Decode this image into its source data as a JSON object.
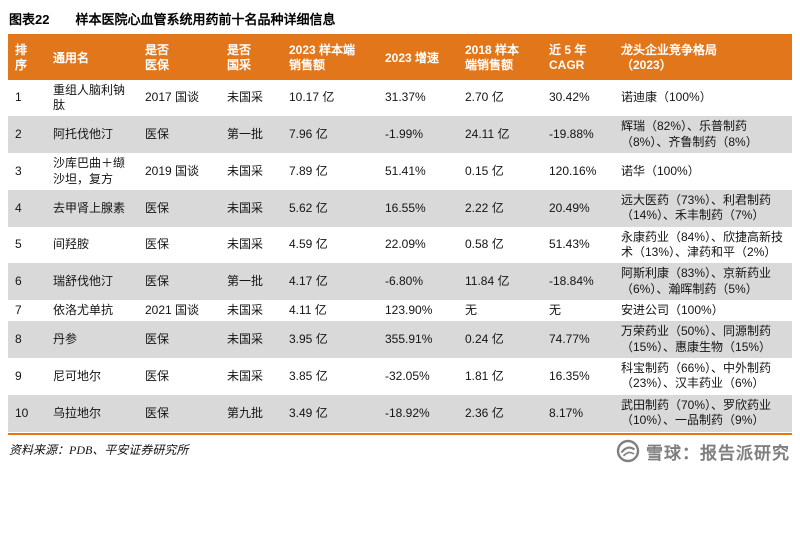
{
  "title": {
    "prefix": "图表22",
    "text": "样本医院心血管系统用药前十名品种详细信息"
  },
  "footer": {
    "source": "资料来源：PDB、平安证券研究所"
  },
  "watermark": {
    "brand": "雪球：报告派研究"
  },
  "colors": {
    "accent": "#E2761B",
    "header_bg": "#E2761B",
    "alt_row": "#D9D9D9",
    "header_text": "#FFFFFF"
  },
  "table": {
    "columns": [
      {
        "key": "rank",
        "label": "排\n序",
        "width": 38
      },
      {
        "key": "generic_name",
        "label": "通用名",
        "width": 92
      },
      {
        "key": "insurance",
        "label": "是否\n医保",
        "width": 82
      },
      {
        "key": "procurement",
        "label": "是否\n国采",
        "width": 62
      },
      {
        "key": "sales_2023",
        "label": "2023 样本端\n销售额",
        "width": 96
      },
      {
        "key": "growth_2023",
        "label": "2023 增速",
        "width": 80
      },
      {
        "key": "sales_2018",
        "label": "2018 样本\n端销售额",
        "width": 84
      },
      {
        "key": "cagr_5y",
        "label": "近 5 年\nCAGR",
        "width": 72
      },
      {
        "key": "competition",
        "label": "龙头企业竞争格局\n（2023）",
        "width": 178
      }
    ],
    "rows": [
      [
        "1",
        "重组人脑利钠肽",
        "2017 国谈",
        "未国采",
        "10.17 亿",
        "31.37%",
        "2.70 亿",
        "30.42%",
        "诺迪康（100%）"
      ],
      [
        "2",
        "阿托伐他汀",
        "医保",
        "第一批",
        "7.96 亿",
        "-1.99%",
        "24.11 亿",
        "-19.88%",
        "辉瑞（82%）、乐普制药（8%）、齐鲁制药（8%）"
      ],
      [
        "3",
        "沙库巴曲＋缬沙坦，复方",
        "2019 国谈",
        "未国采",
        "7.89 亿",
        "51.41%",
        "0.15 亿",
        "120.16%",
        "诺华（100%）"
      ],
      [
        "4",
        "去甲肾上腺素",
        "医保",
        "未国采",
        "5.62 亿",
        "16.55%",
        "2.22 亿",
        "20.49%",
        "远大医药（73%）、利君制药（14%）、禾丰制药（7%）"
      ],
      [
        "5",
        "间羟胺",
        "医保",
        "未国采",
        "4.59 亿",
        "22.09%",
        "0.58 亿",
        "51.43%",
        "永康药业（84%）、欣捷高新技术（13%）、津药和平（2%）"
      ],
      [
        "6",
        "瑞舒伐他汀",
        "医保",
        "第一批",
        "4.17 亿",
        "-6.80%",
        "11.84 亿",
        "-18.84%",
        "阿斯利康（83%）、京新药业（6%）、瀚晖制药（5%）"
      ],
      [
        "7",
        "依洛尤单抗",
        "2021 国谈",
        "未国采",
        "4.11 亿",
        "123.90%",
        "无",
        "无",
        "安进公司（100%）"
      ],
      [
        "8",
        "丹参",
        "医保",
        "未国采",
        "3.95 亿",
        "355.91%",
        "0.24 亿",
        "74.77%",
        "万荣药业（50%）、同源制药（15%）、惠康生物（15%）"
      ],
      [
        "9",
        "尼可地尔",
        "医保",
        "未国采",
        "3.85 亿",
        "-32.05%",
        "1.81 亿",
        "16.35%",
        "科宝制药（66%）、中外制药（23%）、汉丰药业（6%）"
      ],
      [
        "10",
        "乌拉地尔",
        "医保",
        "第九批",
        "3.49 亿",
        "-18.92%",
        "2.36 亿",
        "8.17%",
        "武田制药（70%）、罗欣药业（10%）、一品制药（9%）"
      ]
    ]
  }
}
